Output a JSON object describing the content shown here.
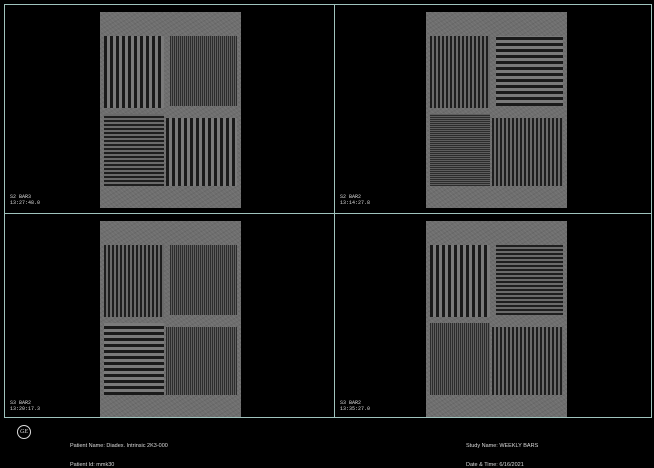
{
  "viewports": [
    {
      "series": "S2 BAR3",
      "time": "13:27:48.0"
    },
    {
      "series": "S2 BAR2",
      "time": "13:14:27.8"
    },
    {
      "series": "S3 BAR2",
      "time": "13:20:17.3"
    },
    {
      "series": "S3 BAR2",
      "time": "13:35:27.0"
    }
  ],
  "logo": {
    "icon": "ge-logo-icon",
    "text": "GE"
  },
  "patient": {
    "name": "Patient Name: Diadex. Intrinsic 2K3-000",
    "id": "Patient Id: mmk30"
  },
  "study": {
    "name": "Study Name: WEEKLY BARS",
    "datetime": "Date & Time: 6/16/2021"
  },
  "colors": {
    "grid_line": "#9fc3bd",
    "background": "#000000",
    "phantom": "#6e6e6e"
  }
}
